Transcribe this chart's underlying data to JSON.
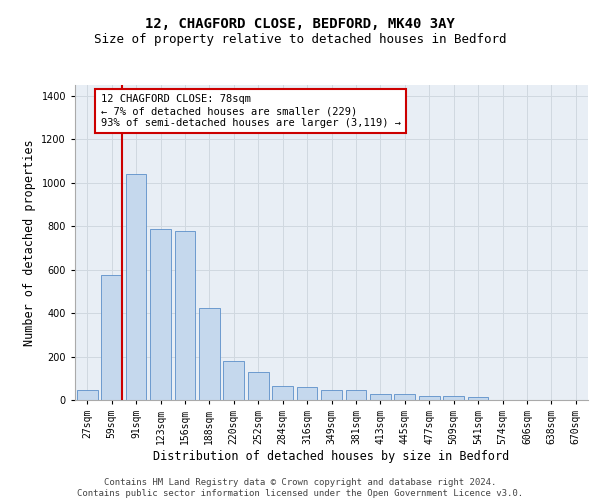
{
  "title_line1": "12, CHAGFORD CLOSE, BEDFORD, MK40 3AY",
  "title_line2": "Size of property relative to detached houses in Bedford",
  "xlabel": "Distribution of detached houses by size in Bedford",
  "ylabel": "Number of detached properties",
  "categories": [
    "27sqm",
    "59sqm",
    "91sqm",
    "123sqm",
    "156sqm",
    "188sqm",
    "220sqm",
    "252sqm",
    "284sqm",
    "316sqm",
    "349sqm",
    "381sqm",
    "413sqm",
    "445sqm",
    "477sqm",
    "509sqm",
    "541sqm",
    "574sqm",
    "606sqm",
    "638sqm",
    "670sqm"
  ],
  "values": [
    45,
    575,
    1040,
    785,
    780,
    425,
    180,
    130,
    65,
    60,
    45,
    45,
    28,
    28,
    18,
    18,
    12,
    0,
    0,
    0,
    0
  ],
  "bar_color": "#c5d8ed",
  "bar_edgecolor": "#5b8fc9",
  "vline_color": "#cc0000",
  "vline_pos": 1.43,
  "annotation_text": "12 CHAGFORD CLOSE: 78sqm\n← 7% of detached houses are smaller (229)\n93% of semi-detached houses are larger (3,119) →",
  "annotation_box_edgecolor": "#cc0000",
  "annotation_box_facecolor": "#ffffff",
  "ylim": [
    0,
    1450
  ],
  "yticks": [
    0,
    200,
    400,
    600,
    800,
    1000,
    1200,
    1400
  ],
  "grid_color": "#d0d8e0",
  "bg_color": "#e8eef5",
  "footer_line1": "Contains HM Land Registry data © Crown copyright and database right 2024.",
  "footer_line2": "Contains public sector information licensed under the Open Government Licence v3.0.",
  "title_fontsize": 10,
  "subtitle_fontsize": 9,
  "tick_fontsize": 7,
  "label_fontsize": 8.5,
  "footer_fontsize": 6.5,
  "annot_fontsize": 7.5
}
